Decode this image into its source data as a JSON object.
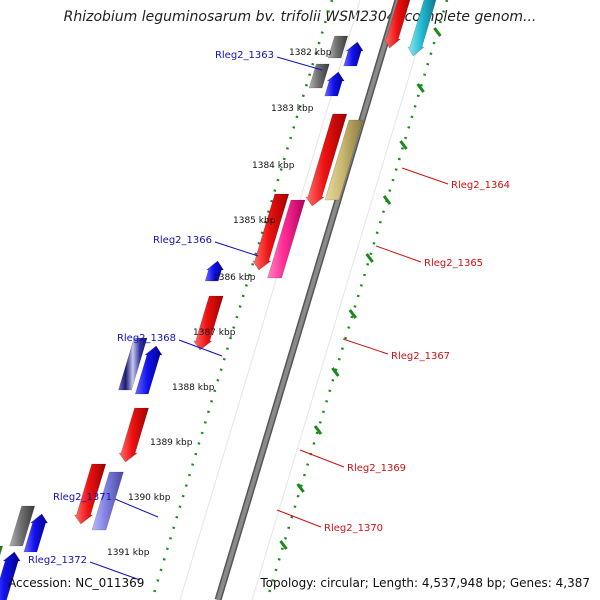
{
  "title": "Rhizobium leguminosarum bv. trifolii WSM2304, complete genom...",
  "accession": "Accession: NC_011369",
  "summary": "Topology: circular; Length: 4,537,948 bp; Genes: 4,387",
  "colors": {
    "backbone": "#8a8a8a",
    "ticks": "#1a8a1a",
    "forward_label": "#1010c0",
    "reverse_label": "#d01010",
    "red": "#ee1111",
    "blue": "#1212ee",
    "grey": "#707070",
    "khaki": "#c8b870",
    "pink": "#ff2a95",
    "violet": "#8080e0",
    "navy": "#3030a0",
    "green": "#40c840",
    "cyan": "#20b8d0"
  },
  "kbp_markers": [
    {
      "kbp": "1382 kbp"
    },
    {
      "kbp": "1383 kbp"
    },
    {
      "kbp": "1384 kbp"
    },
    {
      "kbp": "1385 kbp"
    },
    {
      "kbp": "1386 kbp"
    },
    {
      "kbp": "1387 kbp"
    },
    {
      "kbp": "1388 kbp"
    },
    {
      "kbp": "1389 kbp"
    },
    {
      "kbp": "1390 kbp"
    },
    {
      "kbp": "1391 kbp"
    }
  ],
  "gene_labels": [
    {
      "name": "Rleg2_1363",
      "strand": "forward"
    },
    {
      "name": "Rleg2_1364",
      "strand": "reverse"
    },
    {
      "name": "Rleg2_1365",
      "strand": "reverse"
    },
    {
      "name": "Rleg2_1366",
      "strand": "forward"
    },
    {
      "name": "Rleg2_1367",
      "strand": "reverse"
    },
    {
      "name": "Rleg2_1368",
      "strand": "forward"
    },
    {
      "name": "Rleg2_1369",
      "strand": "reverse"
    },
    {
      "name": "Rleg2_1370",
      "strand": "reverse"
    },
    {
      "name": "Rleg2_1371",
      "strand": "forward"
    },
    {
      "name": "Rleg2_1372",
      "strand": "forward"
    }
  ],
  "features": [
    {
      "name": "feature-red-top"
    },
    {
      "name": "feature-cyan-top"
    },
    {
      "name": "feature-grey-1363a"
    },
    {
      "name": "feature-blue-1363a"
    },
    {
      "name": "feature-grey-1363b"
    },
    {
      "name": "feature-blue-1363b"
    },
    {
      "name": "feature-red-1364"
    },
    {
      "name": "feature-khaki-1364"
    },
    {
      "name": "feature-red-1365"
    },
    {
      "name": "feature-pink-1365"
    },
    {
      "name": "feature-blue-1366"
    },
    {
      "name": "feature-red-1367"
    },
    {
      "name": "feature-navy-1368"
    },
    {
      "name": "feature-blue-1368"
    },
    {
      "name": "feature-red-1369"
    },
    {
      "name": "feature-red-1370"
    },
    {
      "name": "feature-violet-1370"
    },
    {
      "name": "feature-grey-1371"
    },
    {
      "name": "feature-blue-1371"
    },
    {
      "name": "feature-green-1372"
    },
    {
      "name": "feature-blue-1372"
    }
  ]
}
